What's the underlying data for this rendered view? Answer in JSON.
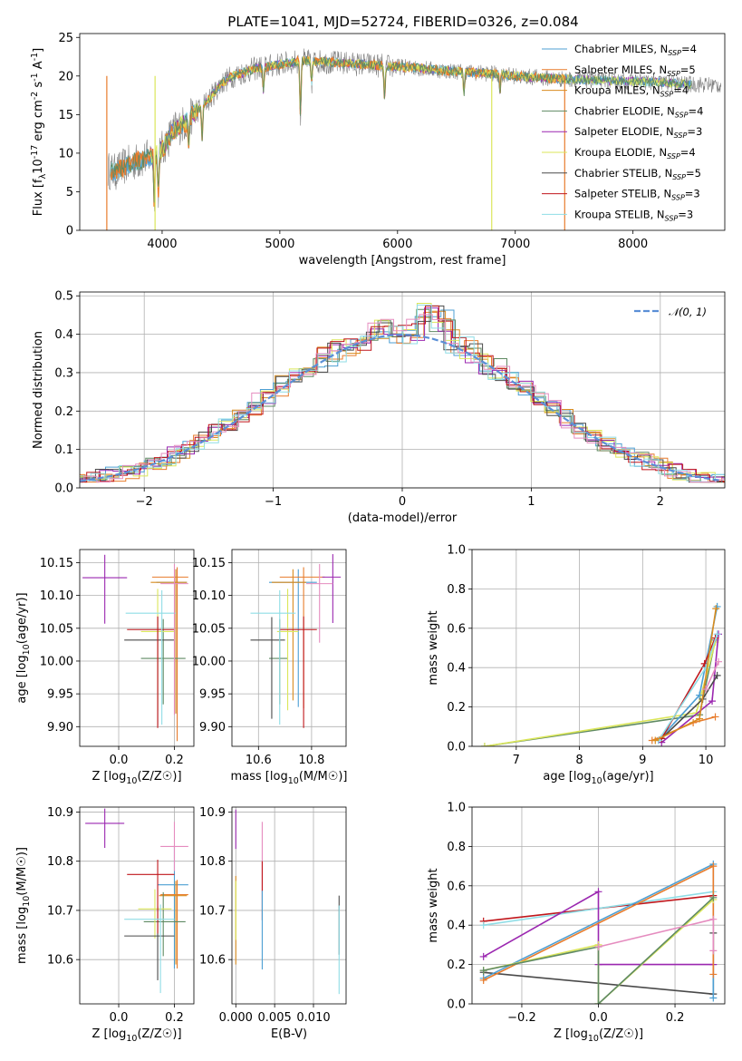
{
  "title": "PLATE=1041, MJD=52724, FIBERID=0326, z=0.084",
  "colors": {
    "Chabrier MILES": "#4c9fd3",
    "Salpeter MILES": "#e87c2c",
    "Kroupa MILES": "#d98c1f",
    "Chabrier ELODIE": "#5f8a63",
    "Salpeter ELODIE": "#9b27b0",
    "Kroupa ELODIE": "#dbe65a",
    "Chabrier STELIB": "#4a4a4a",
    "Salpeter STELIB": "#c0161b",
    "Kroupa STELIB": "#8fdde6",
    "data": "#808080",
    "pink": "#e58cbf",
    "normal": "#5b8fd6"
  },
  "chart_data": [
    {
      "id": "spectrum",
      "type": "line",
      "xlabel": "wavelength [Angstrom, rest frame]",
      "ylabel": "Flux [f_λ10^-17 erg cm^-2 s^-1 A^-1]",
      "xlim": [
        3300,
        8780
      ],
      "ylim": [
        0,
        25.5
      ],
      "xticks": [
        4000,
        5000,
        6000,
        7000,
        8000
      ],
      "yticks": [
        0,
        5,
        10,
        15,
        20,
        25
      ],
      "grid": false,
      "legend": {
        "placement": "right",
        "entries": [
          {
            "name": "Chabrier MILES",
            "nssp": "4"
          },
          {
            "name": "Salpeter MILES",
            "nssp": "5"
          },
          {
            "name": "Kroupa MILES",
            "nssp": "4"
          },
          {
            "name": "Chabrier ELODIE",
            "nssp": "4"
          },
          {
            "name": "Salpeter ELODIE",
            "nssp": "3"
          },
          {
            "name": "Kroupa ELODIE",
            "nssp": "4"
          },
          {
            "name": "Chabrier STELIB",
            "nssp": "5"
          },
          {
            "name": "Salpeter STELIB",
            "nssp": "3"
          },
          {
            "name": "Kroupa STELIB",
            "nssp": "3"
          }
        ]
      },
      "continuum": {
        "x": [
          3500,
          3600,
          3700,
          3800,
          3900,
          4000,
          4100,
          4200,
          4300,
          4400,
          4500,
          4600,
          4800,
          5000,
          5200,
          5400,
          5600,
          5800,
          6000,
          6200,
          6400,
          6600,
          6800,
          7000,
          7200,
          7400,
          7600,
          7800,
          8000,
          8200,
          8400,
          8750
        ],
        "y": [
          8,
          7.5,
          8.5,
          9,
          9.5,
          10.5,
          13,
          14,
          15.5,
          17,
          19,
          20,
          21,
          21.5,
          22,
          21.8,
          21.6,
          21.4,
          21.2,
          21,
          20.7,
          20.5,
          20.3,
          20,
          19.8,
          19.6,
          19.5,
          19.4,
          19.3,
          19.2,
          19.0,
          18.8
        ]
      }
    },
    {
      "id": "residuals",
      "type": "line",
      "xlabel": "(data-model)/error",
      "ylabel": "Normed distribution",
      "xlim": [
        -2.5,
        2.5
      ],
      "ylim": [
        0,
        0.51
      ],
      "xticks": [
        -2,
        -1,
        0,
        1,
        2
      ],
      "yticks": [
        0.0,
        0.1,
        0.2,
        0.3,
        0.4,
        0.5
      ],
      "grid": true,
      "legend": {
        "placement": "top-right",
        "entries": [
          {
            "name": "𝒩(0, 1)"
          }
        ]
      },
      "normal": {
        "mean": 0,
        "sigma": 1
      }
    },
    {
      "id": "age_vs_Z",
      "type": "scatter",
      "xlabel": "Z [log10(Z/Z☉)]",
      "ylabel": "age  [log10(age/yr)]",
      "xlim": [
        -0.14,
        0.27
      ],
      "ylim": [
        9.87,
        10.17
      ],
      "xticks": [
        0.0,
        0.2
      ],
      "yticks": [
        9.9,
        9.95,
        10.0,
        10.05,
        10.1,
        10.15
      ],
      "grid": true,
      "points": [
        {
          "color": "Chabrier MILES",
          "x": 0.205,
          "y": 10.12,
          "ex": [
            0.07,
            0.04
          ],
          "ey": [
            0.2,
            0.02
          ]
        },
        {
          "color": "Salpeter MILES",
          "x": 0.21,
          "y": 10.128,
          "ex": [
            0.09,
            0.04
          ],
          "ey": [
            0.25,
            0.015
          ]
        },
        {
          "color": "Kroupa MILES",
          "x": 0.205,
          "y": 10.12,
          "ex": [
            0.09,
            0.04
          ],
          "ey": [
            0.2,
            0.02
          ]
        },
        {
          "color": "Chabrier ELODIE",
          "x": 0.16,
          "y": 10.004,
          "ex": [
            0.08,
            0.08
          ],
          "ey": [
            0.07,
            0.06
          ]
        },
        {
          "color": "Salpeter ELODIE",
          "x": -0.05,
          "y": 10.127,
          "ex": [
            0.08,
            0.08
          ],
          "ey": [
            0.07,
            0.035
          ]
        },
        {
          "color": "Kroupa ELODIE",
          "x": 0.14,
          "y": 10.045,
          "ex": [
            0.06,
            0.06
          ],
          "ey": [
            0.12,
            0.065
          ]
        },
        {
          "color": "Chabrier STELIB",
          "x": 0.14,
          "y": 10.032,
          "ex": [
            0.12,
            0.06
          ],
          "ey": [
            0.13,
            0.035
          ]
        },
        {
          "color": "Salpeter STELIB",
          "x": 0.14,
          "y": 10.048,
          "ex": [
            0.11,
            0.06
          ],
          "ey": [
            0.15,
            0.02
          ]
        },
        {
          "color": "Kroupa STELIB",
          "x": 0.155,
          "y": 10.073,
          "ex": [
            0.13,
            0.05
          ],
          "ey": [
            0.17,
            0.035
          ]
        },
        {
          "color": "pink",
          "x": 0.2,
          "y": 10.118,
          "ex": [
            0.05,
            0.05
          ],
          "ey": [
            0.2,
            0.03
          ]
        }
      ]
    },
    {
      "id": "age_vs_mass",
      "type": "scatter",
      "xlabel": "mass [log10(M/M☉)]",
      "ylabel": "",
      "xlim": [
        10.5,
        10.93
      ],
      "ylim": [
        9.87,
        10.17
      ],
      "xticks": [
        10.6,
        10.8
      ],
      "yticks": [
        9.9,
        9.95,
        10.0,
        10.05,
        10.1,
        10.15
      ],
      "grid": true,
      "points": [
        {
          "color": "Chabrier MILES",
          "x": 10.75,
          "y": 10.12,
          "ex": [
            0.11,
            0.07
          ],
          "ey": [
            0.19,
            0.02
          ]
        },
        {
          "color": "Salpeter MILES",
          "x": 10.77,
          "y": 10.128,
          "ex": [
            0.09,
            0.08
          ],
          "ey": [
            0.2,
            0.015
          ]
        },
        {
          "color": "Kroupa MILES",
          "x": 10.73,
          "y": 10.12,
          "ex": [
            0.08,
            0.05
          ],
          "ey": [
            0.18,
            0.02
          ]
        },
        {
          "color": "Chabrier ELODIE",
          "x": 10.68,
          "y": 10.004,
          "ex": [
            0.04,
            0.03
          ],
          "ey": [
            0.07,
            0.06
          ]
        },
        {
          "color": "Salpeter ELODIE",
          "x": 10.88,
          "y": 10.128,
          "ex": [
            0.04,
            0.03
          ],
          "ey": [
            0.07,
            0.035
          ]
        },
        {
          "color": "Kroupa ELODIE",
          "x": 10.71,
          "y": 10.045,
          "ex": [
            0.04,
            0.04
          ],
          "ey": [
            0.12,
            0.065
          ]
        },
        {
          "color": "Chabrier STELIB",
          "x": 10.65,
          "y": 10.032,
          "ex": [
            0.08,
            0.05
          ],
          "ey": [
            0.12,
            0.035
          ]
        },
        {
          "color": "Salpeter STELIB",
          "x": 10.77,
          "y": 10.048,
          "ex": [
            0.09,
            0.05
          ],
          "ey": [
            0.15,
            0.02
          ]
        },
        {
          "color": "Kroupa STELIB",
          "x": 10.68,
          "y": 10.073,
          "ex": [
            0.11,
            0.06
          ],
          "ey": [
            0.17,
            0.035
          ]
        },
        {
          "color": "pink",
          "x": 10.83,
          "y": 10.118,
          "ex": [
            0.05,
            0.05
          ],
          "ey": [
            0.09,
            0.03
          ]
        }
      ]
    },
    {
      "id": "mass_weight_vs_age",
      "type": "line",
      "xlabel": "age  [log10(age/yr)]",
      "ylabel": "mass weight",
      "xlim": [
        6.3,
        10.3
      ],
      "ylim": [
        0,
        1.0
      ],
      "xticks": [
        7,
        8,
        9,
        10
      ],
      "yticks": [
        0.0,
        0.2,
        0.4,
        0.6,
        0.8,
        1.0
      ],
      "grid": true,
      "series": [
        {
          "color": "Chabrier ELODIE",
          "x": [
            6.5,
            9.9,
            10.15
          ],
          "y": [
            0.0,
            0.16,
            0.54
          ]
        },
        {
          "color": "Kroupa ELODIE",
          "x": [
            6.5,
            9.85,
            10.15
          ],
          "y": [
            0.0,
            0.17,
            0.53
          ]
        },
        {
          "color": "Salpeter MILES",
          "x": [
            9.15,
            9.8,
            10.15
          ],
          "y": [
            0.03,
            0.12,
            0.15
          ]
        },
        {
          "color": "Chabrier MILES",
          "x": [
            9.25,
            9.9,
            10.18
          ],
          "y": [
            0.03,
            0.26,
            0.71
          ]
        },
        {
          "color": "Salpeter ELODIE",
          "x": [
            9.3,
            10.1,
            10.2
          ],
          "y": [
            0.02,
            0.23,
            0.57
          ]
        },
        {
          "color": "Chabrier STELIB",
          "x": [
            9.3,
            9.95,
            10.18
          ],
          "y": [
            0.04,
            0.24,
            0.36
          ]
        },
        {
          "color": "Salpeter STELIB",
          "x": [
            9.3,
            9.98,
            10.15
          ],
          "y": [
            0.04,
            0.42,
            0.55
          ]
        },
        {
          "color": "Kroupa STELIB",
          "x": [
            9.25,
            10.0,
            10.18
          ],
          "y": [
            0.03,
            0.4,
            0.57
          ]
        },
        {
          "color": "Kroupa MILES",
          "x": [
            9.2,
            9.9,
            10.16
          ],
          "y": [
            0.03,
            0.14,
            0.7
          ]
        },
        {
          "color": "pink",
          "x": [
            10.0,
            10.2
          ],
          "y": [
            0.29,
            0.43
          ]
        }
      ]
    },
    {
      "id": "mass_vs_Z",
      "type": "scatter",
      "xlabel": "Z [log10(Z/Z☉)]",
      "ylabel": "mass [log10(M/M☉)]",
      "xlim": [
        -0.14,
        0.27
      ],
      "ylim": [
        10.51,
        10.91
      ],
      "xticks": [
        0.0,
        0.2
      ],
      "yticks": [
        10.6,
        10.7,
        10.8,
        10.9
      ],
      "grid": true,
      "points": [
        {
          "color": "Chabrier MILES",
          "x": 0.2,
          "y": 10.752,
          "ex": [
            0.06,
            0.05
          ],
          "ey": [
            0.17,
            0.08
          ]
        },
        {
          "color": "Salpeter MILES",
          "x": 0.21,
          "y": 10.732,
          "ex": [
            0.06,
            0.04
          ],
          "ey": [
            0.15,
            0.03
          ]
        },
        {
          "color": "Kroupa MILES",
          "x": 0.205,
          "y": 10.73,
          "ex": [
            0.06,
            0.04
          ],
          "ey": [
            0.14,
            0.03
          ]
        },
        {
          "color": "Chabrier ELODIE",
          "x": 0.16,
          "y": 10.677,
          "ex": [
            0.07,
            0.08
          ],
          "ey": [
            0.07,
            0.06
          ]
        },
        {
          "color": "Salpeter ELODIE",
          "x": -0.05,
          "y": 10.877,
          "ex": [
            0.07,
            0.07
          ],
          "ey": [
            0.05,
            0.03
          ]
        },
        {
          "color": "Kroupa ELODIE",
          "x": 0.13,
          "y": 10.703,
          "ex": [
            0.06,
            0.06
          ],
          "ey": [
            0.06,
            0.04
          ]
        },
        {
          "color": "Chabrier STELIB",
          "x": 0.14,
          "y": 10.648,
          "ex": [
            0.12,
            0.06
          ],
          "ey": [
            0.09,
            0.06
          ]
        },
        {
          "color": "Salpeter STELIB",
          "x": 0.14,
          "y": 10.773,
          "ex": [
            0.11,
            0.06
          ],
          "ey": [
            0.12,
            0.03
          ]
        },
        {
          "color": "Kroupa STELIB",
          "x": 0.15,
          "y": 10.682,
          "ex": [
            0.13,
            0.05
          ],
          "ey": [
            0.15,
            0.03
          ]
        },
        {
          "color": "pink",
          "x": 0.2,
          "y": 10.83,
          "ex": [
            0.05,
            0.05
          ],
          "ey": [
            0.05,
            0.05
          ]
        }
      ]
    },
    {
      "id": "mass_vs_EBV",
      "type": "scatter",
      "xlabel": "E(B-V)",
      "ylabel": "",
      "xlim": [
        -0.0005,
        0.0142
      ],
      "ylim": [
        10.51,
        10.91
      ],
      "xticks": [
        0.0,
        0.005,
        0.01
      ],
      "xticklabels": [
        "0.000",
        "0.005",
        "0.010"
      ],
      "yticks": [
        10.6,
        10.7,
        10.8,
        10.9
      ],
      "grid": true,
      "points": [
        {
          "color": "Salpeter ELODIE",
          "x": 0.0,
          "y": 10.865,
          "ex": [
            0,
            0
          ],
          "ey": [
            0.04,
            0.04
          ]
        },
        {
          "color": "Kroupa MILES",
          "x": 0.0,
          "y": 10.68,
          "ex": [
            0,
            0
          ],
          "ey": [
            0.09,
            0.09
          ]
        },
        {
          "color": "Kroupa ELODIE",
          "x": 0.0,
          "y": 10.7,
          "ex": [
            0,
            0
          ],
          "ey": [
            0.06,
            0.06
          ]
        },
        {
          "color": "pink",
          "x": 0.0034,
          "y": 10.81,
          "ex": [
            0,
            0
          ],
          "ey": [
            0.07,
            0.07
          ]
        },
        {
          "color": "Salpeter STELIB",
          "x": 0.0034,
          "y": 10.74,
          "ex": [
            0,
            0
          ],
          "ey": [
            0.06,
            0.06
          ]
        },
        {
          "color": "Chabrier MILES",
          "x": 0.0034,
          "y": 10.66,
          "ex": [
            0,
            0
          ],
          "ey": [
            0.08,
            0.08
          ]
        },
        {
          "color": "Chabrier STELIB",
          "x": 0.0133,
          "y": 10.67,
          "ex": [
            0,
            0
          ],
          "ey": [
            0.06,
            0.06
          ]
        },
        {
          "color": "Kroupa STELIB",
          "x": 0.0133,
          "y": 10.62,
          "ex": [
            0,
            0
          ],
          "ey": [
            0.09,
            0.09
          ]
        }
      ]
    },
    {
      "id": "mass_weight_vs_Z",
      "type": "line",
      "xlabel": "Z [log10(Z/Z☉)]",
      "ylabel": "mass weight",
      "xlim": [
        -0.33,
        0.33
      ],
      "ylim": [
        0,
        1.0
      ],
      "xticks": [
        -0.2,
        0.0,
        0.2
      ],
      "yticks": [
        0.0,
        0.2,
        0.4,
        0.6,
        0.8,
        1.0
      ],
      "grid": true,
      "series": [
        {
          "color": "Salpeter STELIB",
          "x": [
            -0.3,
            0.3
          ],
          "y": [
            0.42,
            0.55
          ]
        },
        {
          "color": "Kroupa STELIB",
          "x": [
            -0.3,
            0.3
          ],
          "y": [
            0.4,
            0.57
          ]
        },
        {
          "color": "Chabrier STELIB",
          "x": [
            -0.3,
            0.3,
            0.3
          ],
          "y": [
            0.16,
            0.05,
            0.36
          ]
        },
        {
          "color": "Salpeter ELODIE",
          "x": [
            -0.3,
            0.0,
            0.0,
            0.3
          ],
          "y": [
            0.24,
            0.57,
            0.2,
            0.2
          ]
        },
        {
          "color": "Chabrier MILES",
          "x": [
            -0.3,
            0.3,
            0.3
          ],
          "y": [
            0.13,
            0.71,
            0.03
          ]
        },
        {
          "color": "Salpeter MILES",
          "x": [
            -0.3,
            0.3,
            0.3
          ],
          "y": [
            0.12,
            0.7,
            0.15
          ]
        },
        {
          "color": "Kroupa ELODIE",
          "x": [
            -0.3,
            0.0,
            0.0,
            0.3
          ],
          "y": [
            0.17,
            0.3,
            0.0,
            0.53
          ]
        },
        {
          "color": "Chabrier ELODIE",
          "x": [
            -0.3,
            0.0,
            0.0,
            0.3
          ],
          "y": [
            0.17,
            0.29,
            0.0,
            0.54
          ]
        },
        {
          "color": "pink",
          "x": [
            0.0,
            0.3,
            0.3
          ],
          "y": [
            0.29,
            0.43,
            0.27
          ]
        }
      ]
    }
  ]
}
